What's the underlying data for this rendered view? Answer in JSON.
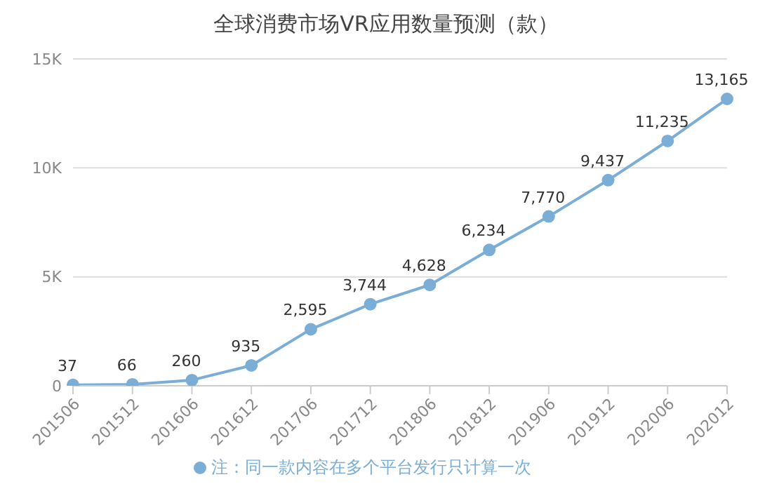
{
  "chart_data": {
    "type": "line",
    "title": "全球消费市场VR应用数量预测（款）",
    "categories": [
      "201506",
      "201512",
      "201606",
      "201612",
      "201706",
      "201712",
      "201806",
      "201812",
      "201906",
      "201912",
      "202006",
      "202012"
    ],
    "series": [
      {
        "name": "注：同一款内容在多个平台发行只计算一次",
        "color": "#7aaed6",
        "values": [
          37,
          66,
          260,
          935,
          2595,
          3744,
          4628,
          6234,
          7770,
          9437,
          11235,
          13165
        ],
        "value_labels": [
          "37",
          "66",
          "260",
          "935",
          "2,595",
          "3,744",
          "4,628",
          "6,234",
          "7,770",
          "9,437",
          "11,235",
          "13,165"
        ]
      }
    ],
    "ylim": [
      0,
      15000
    ],
    "yticks": [
      0,
      {
        "value": 5000,
        "label": "5K"
      },
      {
        "value": 10000,
        "label": "10K"
      },
      {
        "value": 15000,
        "label": "15K"
      }
    ],
    "grid": "y",
    "legend": "bottom",
    "marker": "circle",
    "line_style": "solid"
  }
}
